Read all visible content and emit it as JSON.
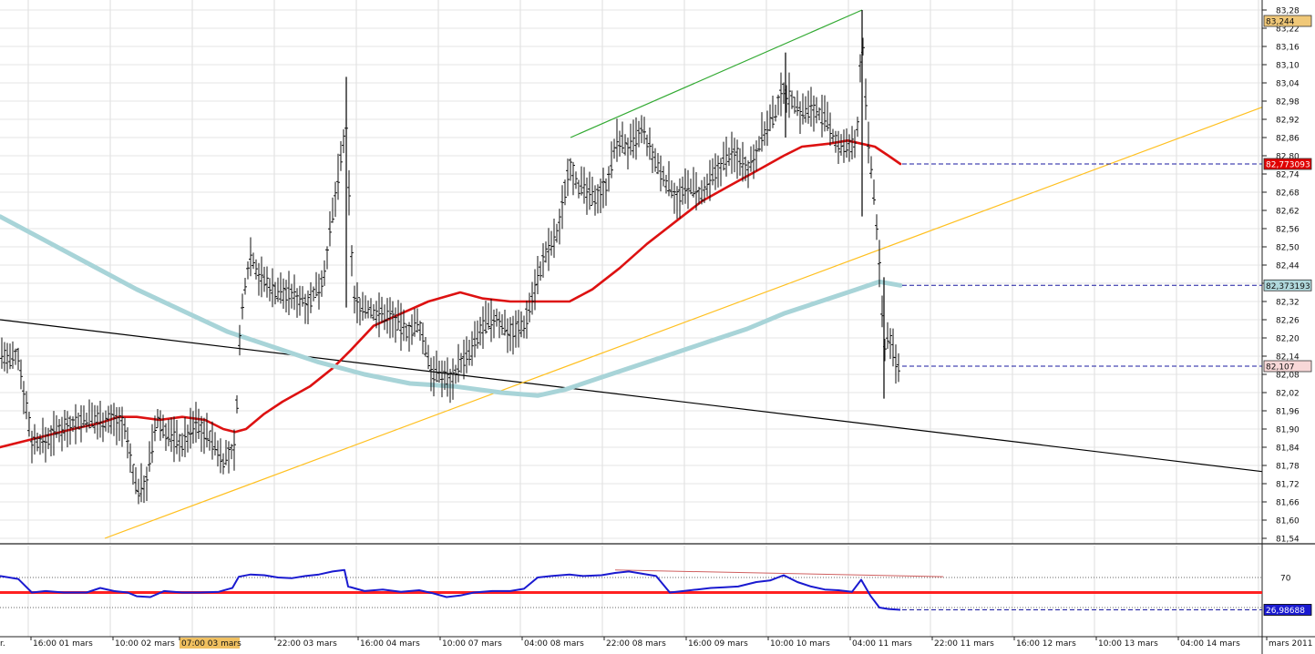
{
  "chart_data": {
    "type": "candlestick",
    "price_axis": {
      "ticks": [
        "83,28",
        "83,22",
        "83,16",
        "83,10",
        "83,04",
        "82,98",
        "82,92",
        "82,86",
        "82,80",
        "82,74",
        "82,68",
        "82,62",
        "82,56",
        "82,50",
        "82,44",
        "82,38",
        "82,32",
        "82,26",
        "82,20",
        "82,14",
        "82,08",
        "82,02",
        "81,96",
        "81,90",
        "81,84",
        "81,78",
        "81,72",
        "81,66",
        "81,60",
        "81,54"
      ],
      "range": [
        81.52,
        83.3
      ]
    },
    "time_axis": {
      "labels": [
        "r.",
        "16:00 01 mars",
        "10:00 02 mars",
        "07:00 03 mars",
        "22:00 03 mars",
        "16:00 04 mars",
        "10:00 07 mars",
        "04:00 08 mars",
        "22:00 08 mars",
        "16:00 09 mars",
        "10:00 10 mars",
        "04:00 11 mars",
        "22:00 11 mars",
        "16:00 12 mars",
        "10:00 13 mars",
        "04:00 14 mars",
        "mars 2011"
      ],
      "highlighted": "07:00 03 mars"
    },
    "price_badges": [
      {
        "value": 83.244,
        "label": "83,244",
        "color": "#f0c878"
      },
      {
        "value": 82.773,
        "label": "82,773093",
        "color": "#e00000"
      },
      {
        "value": 82.373193,
        "label": "82,373193",
        "color": "#b0d8dc"
      },
      {
        "value": 82.107,
        "label": "82,107",
        "color": "#f8d8d8"
      }
    ],
    "bars_anchor": [
      [
        0,
        82.16
      ],
      [
        10,
        82.12
      ],
      [
        20,
        82.14
      ],
      [
        35,
        81.86
      ],
      [
        50,
        81.86
      ],
      [
        65,
        81.9
      ],
      [
        80,
        81.92
      ],
      [
        95,
        81.93
      ],
      [
        108,
        81.93
      ],
      [
        120,
        81.93
      ],
      [
        135,
        81.92
      ],
      [
        150,
        81.7
      ],
      [
        160,
        81.72
      ],
      [
        172,
        81.93
      ],
      [
        185,
        81.88
      ],
      [
        200,
        81.85
      ],
      [
        215,
        81.92
      ],
      [
        230,
        81.87
      ],
      [
        245,
        81.8
      ],
      [
        258,
        81.83
      ],
      [
        262,
        82.15
      ],
      [
        268,
        82.36
      ],
      [
        275,
        82.48
      ],
      [
        285,
        82.4
      ],
      [
        300,
        82.36
      ],
      [
        320,
        82.34
      ],
      [
        340,
        82.32
      ],
      [
        355,
        82.4
      ],
      [
        365,
        82.6
      ],
      [
        372,
        82.75
      ],
      [
        380,
        82.9
      ],
      [
        388,
        82.32
      ],
      [
        400,
        82.3
      ],
      [
        415,
        82.28
      ],
      [
        430,
        82.27
      ],
      [
        445,
        82.22
      ],
      [
        460,
        82.24
      ],
      [
        475,
        82.08
      ],
      [
        485,
        82.08
      ],
      [
        495,
        82.06
      ],
      [
        505,
        82.12
      ],
      [
        515,
        82.14
      ],
      [
        530,
        82.24
      ],
      [
        545,
        82.26
      ],
      [
        560,
        82.22
      ],
      [
        575,
        82.24
      ],
      [
        590,
        82.4
      ],
      [
        600,
        82.48
      ],
      [
        612,
        82.54
      ],
      [
        625,
        82.78
      ],
      [
        635,
        82.7
      ],
      [
        650,
        82.66
      ],
      [
        665,
        82.7
      ],
      [
        678,
        82.86
      ],
      [
        690,
        82.82
      ],
      [
        705,
        82.88
      ],
      [
        718,
        82.78
      ],
      [
        730,
        82.72
      ],
      [
        745,
        82.66
      ],
      [
        758,
        82.7
      ],
      [
        770,
        82.66
      ],
      [
        785,
        82.74
      ],
      [
        798,
        82.8
      ],
      [
        810,
        82.8
      ],
      [
        822,
        82.76
      ],
      [
        835,
        82.86
      ],
      [
        848,
        82.92
      ],
      [
        860,
        83.02
      ],
      [
        870,
        82.98
      ],
      [
        880,
        82.94
      ],
      [
        892,
        82.96
      ],
      [
        905,
        82.92
      ],
      [
        918,
        82.84
      ],
      [
        930,
        82.82
      ],
      [
        940,
        82.84
      ],
      [
        946,
        83.22
      ],
      [
        952,
        82.86
      ],
      [
        958,
        82.7
      ],
      [
        964,
        82.5
      ],
      [
        970,
        82.16
      ],
      [
        976,
        82.22
      ],
      [
        982,
        82.12
      ],
      [
        988,
        82.1
      ]
    ],
    "series": [
      {
        "name": "",
        "color": "#dd1111",
        "points": [
          [
            0,
            81.84
          ],
          [
            40,
            81.87
          ],
          [
            80,
            81.9
          ],
          [
            110,
            81.92
          ],
          [
            130,
            81.94
          ],
          [
            150,
            81.94
          ],
          [
            175,
            81.93
          ],
          [
            200,
            81.94
          ],
          [
            225,
            81.93
          ],
          [
            245,
            81.9
          ],
          [
            258,
            81.89
          ],
          [
            270,
            81.9
          ],
          [
            290,
            81.95
          ],
          [
            310,
            81.99
          ],
          [
            340,
            82.04
          ],
          [
            365,
            82.1
          ],
          [
            385,
            82.16
          ],
          [
            410,
            82.24
          ],
          [
            440,
            82.28
          ],
          [
            470,
            82.32
          ],
          [
            505,
            82.35
          ],
          [
            530,
            82.33
          ],
          [
            560,
            82.32
          ],
          [
            590,
            82.32
          ],
          [
            625,
            82.32
          ],
          [
            650,
            82.36
          ],
          [
            680,
            82.43
          ],
          [
            710,
            82.51
          ],
          [
            740,
            82.58
          ],
          [
            770,
            82.65
          ],
          [
            800,
            82.7
          ],
          [
            830,
            82.75
          ],
          [
            860,
            82.8
          ],
          [
            880,
            82.83
          ],
          [
            910,
            82.84
          ],
          [
            930,
            82.85
          ],
          [
            945,
            82.84
          ],
          [
            960,
            82.83
          ],
          [
            975,
            82.8
          ],
          [
            988,
            82.773
          ]
        ]
      },
      {
        "name": "",
        "color": "#a8d4d8",
        "points": [
          [
            0,
            82.6
          ],
          [
            50,
            82.52
          ],
          [
            100,
            82.44
          ],
          [
            150,
            82.36
          ],
          [
            200,
            82.29
          ],
          [
            250,
            82.22
          ],
          [
            300,
            82.17
          ],
          [
            350,
            82.12
          ],
          [
            400,
            82.08
          ],
          [
            450,
            82.05
          ],
          [
            500,
            82.04
          ],
          [
            550,
            82.02
          ],
          [
            590,
            82.01
          ],
          [
            620,
            82.03
          ],
          [
            660,
            82.07
          ],
          [
            700,
            82.11
          ],
          [
            740,
            82.15
          ],
          [
            780,
            82.19
          ],
          [
            820,
            82.23
          ],
          [
            860,
            82.28
          ],
          [
            900,
            82.32
          ],
          [
            940,
            82.36
          ],
          [
            965,
            82.385
          ],
          [
            988,
            82.373
          ]
        ]
      }
    ],
    "trendlines": [
      {
        "color": "#000000",
        "from": [
          0,
          82.26
        ],
        "to": [
          1385,
          81.76
        ]
      },
      {
        "color": "#ffc020",
        "from": [
          115,
          81.54
        ],
        "to": [
          1385,
          82.96
        ]
      },
      {
        "color": "#33aa33",
        "from": [
          626,
          82.86
        ],
        "to": [
          946,
          83.28
        ]
      }
    ],
    "rsi": {
      "levels": [
        70,
        30
      ],
      "level_labels": [
        "70"
      ],
      "last_label": "26,98688",
      "signal_level": 50,
      "points": [
        [
          0,
          72
        ],
        [
          20,
          68
        ],
        [
          35,
          50
        ],
        [
          50,
          52
        ],
        [
          70,
          50
        ],
        [
          95,
          50
        ],
        [
          110,
          56
        ],
        [
          125,
          52
        ],
        [
          140,
          50
        ],
        [
          150,
          45
        ],
        [
          165,
          44
        ],
        [
          180,
          52
        ],
        [
          200,
          50
        ],
        [
          220,
          50
        ],
        [
          240,
          51
        ],
        [
          255,
          56
        ],
        [
          262,
          71
        ],
        [
          275,
          74
        ],
        [
          290,
          73
        ],
        [
          305,
          70
        ],
        [
          320,
          69
        ],
        [
          335,
          72
        ],
        [
          350,
          74
        ],
        [
          365,
          78
        ],
        [
          378,
          80
        ],
        [
          382,
          58
        ],
        [
          400,
          52
        ],
        [
          420,
          54
        ],
        [
          440,
          51
        ],
        [
          460,
          53
        ],
        [
          475,
          49
        ],
        [
          490,
          44
        ],
        [
          505,
          46
        ],
        [
          520,
          50
        ],
        [
          540,
          52
        ],
        [
          560,
          52
        ],
        [
          575,
          55
        ],
        [
          590,
          70
        ],
        [
          605,
          72
        ],
        [
          625,
          74
        ],
        [
          640,
          72
        ],
        [
          660,
          73
        ],
        [
          675,
          76
        ],
        [
          690,
          78
        ],
        [
          705,
          75
        ],
        [
          720,
          72
        ],
        [
          735,
          50
        ],
        [
          750,
          52
        ],
        [
          765,
          54
        ],
        [
          780,
          56
        ],
        [
          795,
          57
        ],
        [
          810,
          58
        ],
        [
          830,
          64
        ],
        [
          845,
          66
        ],
        [
          860,
          73
        ],
        [
          875,
          64
        ],
        [
          890,
          58
        ],
        [
          905,
          54
        ],
        [
          920,
          53
        ],
        [
          935,
          51
        ],
        [
          945,
          67
        ],
        [
          955,
          46
        ],
        [
          965,
          30
        ],
        [
          975,
          28
        ],
        [
          988,
          27
        ]
      ],
      "rsi_trend": {
        "from": [
          675,
          80
        ],
        "to": [
          1035,
          71
        ]
      }
    }
  }
}
